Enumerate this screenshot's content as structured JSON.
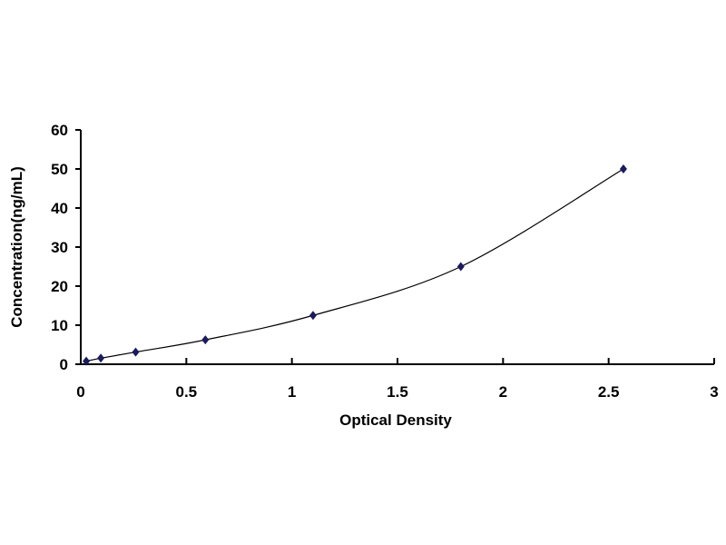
{
  "chart_data": {
    "type": "scatter",
    "title": "",
    "xlabel": "Optical Density",
    "ylabel": "Concentration(ng/mL)",
    "xlim": [
      0,
      3
    ],
    "ylim": [
      0,
      60
    ],
    "xticks": [
      "0",
      "0.5",
      "1",
      "1.5",
      "2",
      "2.5",
      "3"
    ],
    "yticks": [
      "0",
      "10",
      "20",
      "30",
      "40",
      "50",
      "60"
    ],
    "grid": false,
    "trendline": "smooth curve",
    "marker_color": "#1a1a5e",
    "line_color": "#000000",
    "points": [
      {
        "x": 0.026,
        "y": 0.78
      },
      {
        "x": 0.095,
        "y": 1.56
      },
      {
        "x": 0.26,
        "y": 3.12
      },
      {
        "x": 0.59,
        "y": 6.25
      },
      {
        "x": 1.1,
        "y": 12.5
      },
      {
        "x": 1.8,
        "y": 25
      },
      {
        "x": 2.57,
        "y": 50
      }
    ]
  }
}
